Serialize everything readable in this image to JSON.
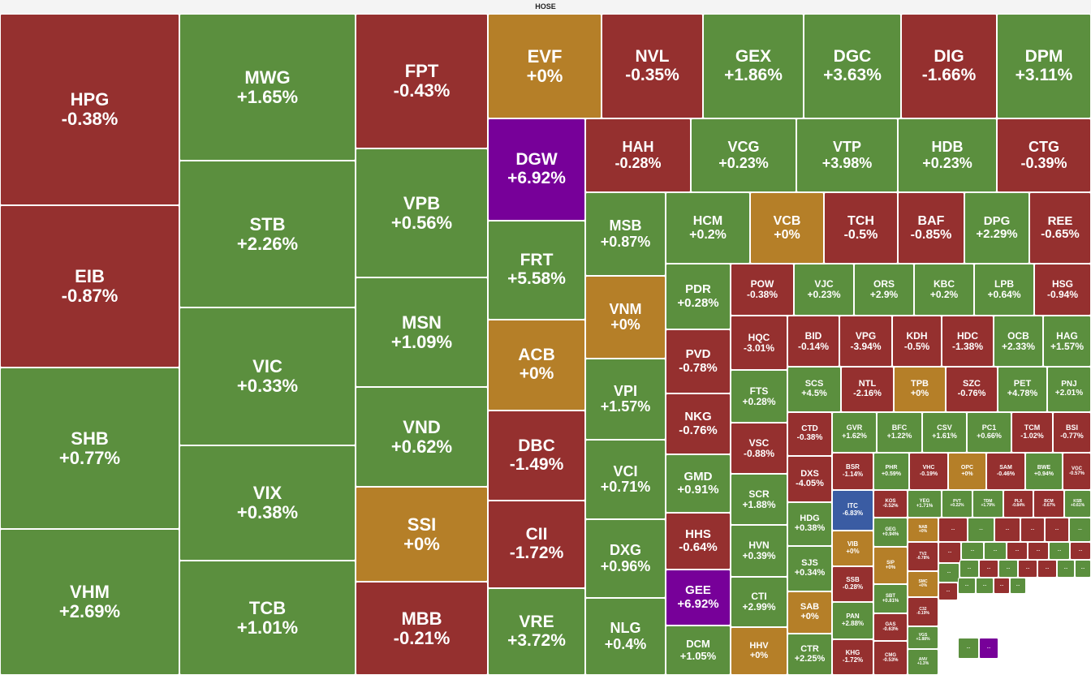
{
  "header": {
    "title": "HOSE"
  },
  "colors": {
    "up": "#5b8f3e",
    "down": "#95302f",
    "flat": "#b57f28",
    "ceiling": "#770099",
    "floor": "#3a5ca3"
  },
  "tiles": [
    {
      "t": "HPG",
      "c": "-0.38%",
      "s": "down"
    },
    {
      "t": "EIB",
      "c": "-0.87%",
      "s": "down"
    },
    {
      "t": "SHB",
      "c": "+0.77%",
      "s": "up"
    },
    {
      "t": "VHM",
      "c": "+2.69%",
      "s": "up"
    },
    {
      "t": "MWG",
      "c": "+1.65%",
      "s": "up"
    },
    {
      "t": "STB",
      "c": "+2.26%",
      "s": "up"
    },
    {
      "t": "VIC",
      "c": "+0.33%",
      "s": "up"
    },
    {
      "t": "VIX",
      "c": "+0.38%",
      "s": "up"
    },
    {
      "t": "TCB",
      "c": "+1.01%",
      "s": "up"
    },
    {
      "t": "FPT",
      "c": "-0.43%",
      "s": "down"
    },
    {
      "t": "VPB",
      "c": "+0.56%",
      "s": "up"
    },
    {
      "t": "MSN",
      "c": "+1.09%",
      "s": "up"
    },
    {
      "t": "VND",
      "c": "+0.62%",
      "s": "up"
    },
    {
      "t": "SSI",
      "c": "+0%",
      "s": "flat"
    },
    {
      "t": "MBB",
      "c": "-0.21%",
      "s": "down"
    },
    {
      "t": "EVF",
      "c": "+0%",
      "s": "flat"
    },
    {
      "t": "DGW",
      "c": "+6.92%",
      "s": "ceiling"
    },
    {
      "t": "FRT",
      "c": "+5.58%",
      "s": "up"
    },
    {
      "t": "ACB",
      "c": "+0%",
      "s": "flat"
    },
    {
      "t": "DBC",
      "c": "-1.49%",
      "s": "down"
    },
    {
      "t": "CII",
      "c": "-1.72%",
      "s": "down"
    },
    {
      "t": "VRE",
      "c": "+3.72%",
      "s": "up"
    },
    {
      "t": "NVL",
      "c": "-0.35%",
      "s": "down"
    },
    {
      "t": "GEX",
      "c": "+1.86%",
      "s": "up"
    },
    {
      "t": "DGC",
      "c": "+3.63%",
      "s": "up"
    },
    {
      "t": "DIG",
      "c": "-1.66%",
      "s": "down"
    },
    {
      "t": "DPM",
      "c": "+3.11%",
      "s": "up"
    },
    {
      "t": "HAH",
      "c": "-0.28%",
      "s": "down"
    },
    {
      "t": "VCG",
      "c": "+0.23%",
      "s": "up"
    },
    {
      "t": "VTP",
      "c": "+3.98%",
      "s": "up"
    },
    {
      "t": "HDB",
      "c": "+0.23%",
      "s": "up"
    },
    {
      "t": "CTG",
      "c": "-0.39%",
      "s": "down"
    },
    {
      "t": "MSB",
      "c": "+0.87%",
      "s": "up"
    },
    {
      "t": "VNM",
      "c": "+0%",
      "s": "flat"
    },
    {
      "t": "VPI",
      "c": "+1.57%",
      "s": "up"
    },
    {
      "t": "VCI",
      "c": "+0.71%",
      "s": "up"
    },
    {
      "t": "DXG",
      "c": "+0.96%",
      "s": "up"
    },
    {
      "t": "NLG",
      "c": "+0.4%",
      "s": "up"
    },
    {
      "t": "HCM",
      "c": "+0.2%",
      "s": "up"
    },
    {
      "t": "VCB",
      "c": "+0%",
      "s": "flat"
    },
    {
      "t": "TCH",
      "c": "-0.5%",
      "s": "down"
    },
    {
      "t": "BAF",
      "c": "-0.85%",
      "s": "down"
    },
    {
      "t": "DPG",
      "c": "+2.29%",
      "s": "up"
    },
    {
      "t": "REE",
      "c": "-0.65%",
      "s": "down"
    },
    {
      "t": "PDR",
      "c": "+0.28%",
      "s": "up"
    },
    {
      "t": "PVD",
      "c": "-0.78%",
      "s": "down"
    },
    {
      "t": "NKG",
      "c": "-0.76%",
      "s": "down"
    },
    {
      "t": "GMD",
      "c": "+0.91%",
      "s": "up"
    },
    {
      "t": "HHS",
      "c": "-0.64%",
      "s": "down"
    },
    {
      "t": "GEE",
      "c": "+6.92%",
      "s": "ceiling"
    },
    {
      "t": "DCM",
      "c": "+1.05%",
      "s": "up"
    },
    {
      "t": "POW",
      "c": "-0.38%",
      "s": "down"
    },
    {
      "t": "VJC",
      "c": "+0.23%",
      "s": "up"
    },
    {
      "t": "ORS",
      "c": "+2.9%",
      "s": "up"
    },
    {
      "t": "KBC",
      "c": "+0.2%",
      "s": "up"
    },
    {
      "t": "LPB",
      "c": "+0.64%",
      "s": "up"
    },
    {
      "t": "HSG",
      "c": "-0.94%",
      "s": "down"
    },
    {
      "t": "HQC",
      "c": "-3.01%",
      "s": "down"
    },
    {
      "t": "BID",
      "c": "-0.14%",
      "s": "down"
    },
    {
      "t": "VPG",
      "c": "-3.94%",
      "s": "down"
    },
    {
      "t": "KDH",
      "c": "-0.5%",
      "s": "down"
    },
    {
      "t": "HDC",
      "c": "-1.38%",
      "s": "down"
    },
    {
      "t": "OCB",
      "c": "+2.33%",
      "s": "up"
    },
    {
      "t": "HAG",
      "c": "+1.57%",
      "s": "up"
    },
    {
      "t": "FTS",
      "c": "+0.28%",
      "s": "up"
    },
    {
      "t": "SCS",
      "c": "+4.5%",
      "s": "up"
    },
    {
      "t": "NTL",
      "c": "-2.16%",
      "s": "down"
    },
    {
      "t": "TPB",
      "c": "+0%",
      "s": "flat"
    },
    {
      "t": "SZC",
      "c": "-0.76%",
      "s": "down"
    },
    {
      "t": "PET",
      "c": "+4.78%",
      "s": "up"
    },
    {
      "t": "PNJ",
      "c": "+2.01%",
      "s": "up"
    },
    {
      "t": "VSC",
      "c": "-0.88%",
      "s": "down"
    },
    {
      "t": "SCR",
      "c": "+1.88%",
      "s": "up"
    },
    {
      "t": "HVN",
      "c": "+0.39%",
      "s": "up"
    },
    {
      "t": "CTI",
      "c": "+2.99%",
      "s": "up"
    },
    {
      "t": "HHV",
      "c": "+0%",
      "s": "flat"
    },
    {
      "t": "CTD",
      "c": "-0.38%",
      "s": "down"
    },
    {
      "t": "GVR",
      "c": "+1.62%",
      "s": "up"
    },
    {
      "t": "BFC",
      "c": "+1.22%",
      "s": "up"
    },
    {
      "t": "CSV",
      "c": "+1.61%",
      "s": "up"
    },
    {
      "t": "PC1",
      "c": "+0.66%",
      "s": "up"
    },
    {
      "t": "TCM",
      "c": "-1.02%",
      "s": "down"
    },
    {
      "t": "BSI",
      "c": "-0.77%",
      "s": "down"
    },
    {
      "t": "DXS",
      "c": "-4.05%",
      "s": "down"
    },
    {
      "t": "BSR",
      "c": "-1.14%",
      "s": "down"
    },
    {
      "t": "PHR",
      "c": "+0.59%",
      "s": "up"
    },
    {
      "t": "VHC",
      "c": "-0.19%",
      "s": "down"
    },
    {
      "t": "OPC",
      "c": "+0%",
      "s": "flat"
    },
    {
      "t": "SAM",
      "c": "-0.46%",
      "s": "down"
    },
    {
      "t": "BWE",
      "c": "+0.94%",
      "s": "up"
    },
    {
      "t": "VGC",
      "c": "-0.57%",
      "s": "down"
    },
    {
      "t": "ITC",
      "c": "-6.83%",
      "s": "floor"
    },
    {
      "t": "KOS",
      "c": "-0.52%",
      "s": "down"
    },
    {
      "t": "YEG",
      "c": "+1.71%",
      "s": "up"
    },
    {
      "t": "PVT",
      "c": "+0.22%",
      "s": "up"
    },
    {
      "t": "TDM",
      "c": "+1.79%",
      "s": "up"
    },
    {
      "t": "PLX",
      "c": "-0.84%",
      "s": "down"
    },
    {
      "t": "BCM",
      "c": "-0.67%",
      "s": "down"
    },
    {
      "t": "KSB",
      "c": "+0.61%",
      "s": "up"
    },
    {
      "t": "HDG",
      "c": "+0.38%",
      "s": "up"
    },
    {
      "t": "VIB",
      "c": "+0%",
      "s": "flat"
    },
    {
      "t": "GEG",
      "c": "+0.94%",
      "s": "up"
    },
    {
      "t": "NAB",
      "c": "+0%",
      "s": "flat"
    },
    {
      "t": "SJS",
      "c": "+0.34%",
      "s": "up"
    },
    {
      "t": "SIP",
      "c": "+0%",
      "s": "flat"
    },
    {
      "t": "TV2",
      "c": "-0.78%",
      "s": "down"
    },
    {
      "t": "SSB",
      "c": "-0.28%",
      "s": "down"
    },
    {
      "t": "SBT",
      "c": "+0.81%",
      "s": "up"
    },
    {
      "t": "SMC",
      "c": "+0%",
      "s": "flat"
    },
    {
      "t": "SAB",
      "c": "+0%",
      "s": "flat"
    },
    {
      "t": "PAN",
      "c": "+2.88%",
      "s": "up"
    },
    {
      "t": "GAS",
      "c": "-0.63%",
      "s": "down"
    },
    {
      "t": "C32",
      "c": "-0.19%",
      "s": "down"
    },
    {
      "t": "VGS",
      "c": "+1.88%",
      "s": "up"
    },
    {
      "t": "CTR",
      "c": "+2.25%",
      "s": "up"
    },
    {
      "t": "KHG",
      "c": "-1.72%",
      "s": "down"
    },
    {
      "t": "CMG",
      "c": "-0.53%",
      "s": "down"
    },
    {
      "t": "ANV",
      "c": "+1.3%",
      "s": "up"
    },
    {
      "t": "…",
      "c": "",
      "s": "down"
    },
    {
      "t": "…",
      "c": "",
      "s": "up"
    },
    {
      "t": "…",
      "c": "",
      "s": "down"
    },
    {
      "t": "…",
      "c": "",
      "s": "down"
    },
    {
      "t": "…",
      "c": "",
      "s": "down"
    },
    {
      "t": "…",
      "c": "",
      "s": "up"
    },
    {
      "t": "…",
      "c": "",
      "s": "down"
    },
    {
      "t": "…",
      "c": "",
      "s": "up"
    },
    {
      "t": "…",
      "c": "",
      "s": "up"
    },
    {
      "t": "…",
      "c": "",
      "s": "down"
    },
    {
      "t": "…",
      "c": "",
      "s": "down"
    },
    {
      "t": "…",
      "c": "",
      "s": "up"
    },
    {
      "t": "…",
      "c": "",
      "s": "down"
    },
    {
      "t": "…",
      "c": "",
      "s": "up"
    },
    {
      "t": "…",
      "c": "",
      "s": "up"
    },
    {
      "t": "…",
      "c": "",
      "s": "down"
    },
    {
      "t": "…",
      "c": "",
      "s": "up"
    },
    {
      "t": "…",
      "c": "",
      "s": "down"
    },
    {
      "t": "…",
      "c": "",
      "s": "down"
    },
    {
      "t": "…",
      "c": "",
      "s": "up"
    },
    {
      "t": "…",
      "c": "",
      "s": "up"
    },
    {
      "t": "…",
      "c": "",
      "s": "down"
    },
    {
      "t": "…",
      "c": "",
      "s": "up"
    },
    {
      "t": "…",
      "c": "",
      "s": "up"
    },
    {
      "t": "…",
      "c": "",
      "s": "down"
    },
    {
      "t": "…",
      "c": "",
      "s": "up"
    },
    {
      "t": "…",
      "c": "",
      "s": "up"
    },
    {
      "t": "…",
      "c": "",
      "s": "ceiling"
    },
    {
      "t": "…",
      "c": "",
      "s": "down"
    },
    {
      "t": "…",
      "c": "",
      "s": "up"
    }
  ]
}
